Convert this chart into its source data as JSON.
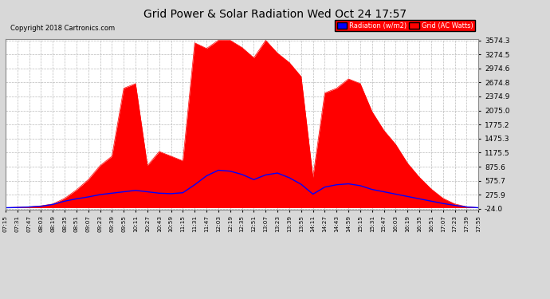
{
  "title": "Grid Power & Solar Radiation Wed Oct 24 17:57",
  "copyright": "Copyright 2018 Cartronics.com",
  "background_color": "#d8d8d8",
  "plot_bg_color": "#ffffff",
  "grid_color": "#bbbbbb",
  "yticks": [
    -24.0,
    275.9,
    575.7,
    875.6,
    1175.5,
    1475.3,
    1775.2,
    2075.0,
    2374.9,
    2674.8,
    2974.6,
    3274.5,
    3574.3
  ],
  "ymin": -24.0,
  "ymax": 3574.3,
  "legend_radiation_label": "Radiation (w/m2)",
  "legend_grid_label": "Grid (AC Watts)",
  "radiation_color": "#0000ff",
  "grid_power_color": "#ff0000",
  "xtick_labels": [
    "07:15",
    "07:31",
    "07:47",
    "08:03",
    "08:19",
    "08:35",
    "08:51",
    "09:07",
    "09:23",
    "09:39",
    "09:55",
    "10:11",
    "10:27",
    "10:43",
    "10:59",
    "11:15",
    "11:31",
    "11:47",
    "12:03",
    "12:19",
    "12:35",
    "12:51",
    "13:07",
    "13:23",
    "13:39",
    "13:55",
    "14:11",
    "14:27",
    "14:43",
    "14:59",
    "15:15",
    "15:31",
    "15:47",
    "16:03",
    "16:19",
    "16:35",
    "16:51",
    "17:07",
    "17:23",
    "17:39",
    "17:55"
  ],
  "grid_power": [
    0,
    10,
    20,
    40,
    80,
    200,
    380,
    600,
    900,
    1100,
    2550,
    2650,
    900,
    1200,
    1100,
    1000,
    3520,
    3400,
    3574,
    3574,
    3420,
    3200,
    3574,
    3300,
    3100,
    2800,
    650,
    2450,
    2550,
    2750,
    2650,
    2050,
    1650,
    1350,
    950,
    650,
    400,
    200,
    80,
    20,
    0
  ],
  "radiation": [
    0,
    5,
    15,
    30,
    70,
    140,
    190,
    230,
    280,
    310,
    340,
    370,
    340,
    310,
    300,
    320,
    490,
    680,
    800,
    780,
    710,
    600,
    700,
    740,
    640,
    500,
    290,
    440,
    490,
    510,
    470,
    390,
    340,
    290,
    240,
    190,
    140,
    90,
    50,
    15,
    0
  ]
}
